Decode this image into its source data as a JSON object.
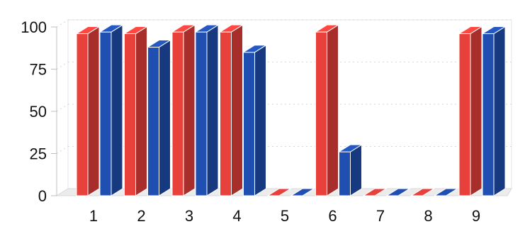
{
  "chart_data": {
    "type": "bar",
    "categories": [
      "1",
      "2",
      "3",
      "4",
      "5",
      "6",
      "7",
      "8",
      "9"
    ],
    "series": [
      {
        "color": "#e8403a",
        "values": [
          96,
          96,
          97,
          97,
          0,
          97,
          0,
          0,
          96
        ]
      },
      {
        "color": "#1f4fb0",
        "values": [
          97,
          88,
          97,
          85,
          0,
          26,
          0,
          0,
          96
        ]
      }
    ],
    "yticks": [
      "0",
      "25",
      "50",
      "75",
      "100"
    ],
    "ylim": [
      0,
      100
    ],
    "grid": true,
    "legend": "none",
    "style": "3d"
  }
}
